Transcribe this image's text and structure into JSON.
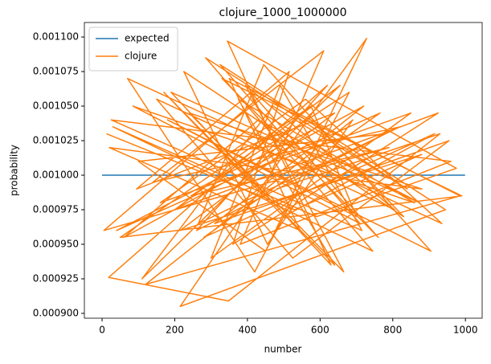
{
  "chart_data": {
    "type": "line",
    "title": "clojure_1000_1000000",
    "xlabel": "number",
    "ylabel": "probability",
    "xlim": [
      -48.7,
      1046
    ],
    "ylim": [
      0.0008965,
      0.0011105
    ],
    "xticks": [
      0,
      200,
      400,
      600,
      800,
      1000
    ],
    "yticks": [
      {
        "value": 0.0009,
        "label": "0.000900"
      },
      {
        "value": 0.000925,
        "label": "0.000925"
      },
      {
        "value": 0.00095,
        "label": "0.000950"
      },
      {
        "value": 0.000975,
        "label": "0.000975"
      },
      {
        "value": 0.001,
        "label": "0.001000"
      },
      {
        "value": 0.001025,
        "label": "0.001025"
      },
      {
        "value": 0.00105,
        "label": "0.001050"
      },
      {
        "value": 0.001075,
        "label": "0.001075"
      },
      {
        "value": 0.0011,
        "label": "0.001100"
      }
    ],
    "grid": false,
    "legend": "upper left",
    "series": [
      {
        "name": "expected",
        "color": "#1f77b4",
        "x": [
          0,
          999
        ],
        "values": [
          0.001,
          0.001
        ]
      },
      {
        "name": "clojure",
        "color": "#ff7f0e",
        "x": [
          12,
          530,
          880,
          215,
          640,
          95,
          410,
          760,
          330,
          990,
          50,
          575,
          700,
          180,
          905,
          445,
          265,
          820,
          140,
          610,
          380,
          960,
          25,
          715,
          490,
          300,
          850,
          160,
          560,
          935,
          70,
          420,
          680,
          245,
          790,
          5,
          515,
          360,
          925,
          200,
          655,
          110,
          470,
          840,
          285,
          745,
          30,
          590,
          975,
          345,
          630,
          190,
          875,
          430,
          60,
          720,
          310,
          955,
          525,
          150,
          805,
          395,
          665,
          240,
          880,
          20,
          545,
          350,
          985,
          120,
          690,
          455,
          225,
          830,
          595,
          40,
          765,
          280,
          915,
          500,
          170,
          640,
          375,
          860,
          85,
          710,
          325,
          945,
          215,
          565,
          728,
          450,
          100,
          780,
          260,
          620,
          18,
          348,
          930,
          480
        ],
        "values": [
          0.00103,
          0.000975,
          0.001015,
          0.00096,
          0.001045,
          0.00099,
          0.00106,
          0.000955,
          0.00107,
          0.000985,
          0.000955,
          0.00105,
          0.00097,
          0.00104,
          0.000945,
          0.00108,
          0.000965,
          0.001035,
          0.000995,
          0.00109,
          0.00095,
          0.00101,
          0.00104,
          0.00096,
          0.001065,
          0.00094,
          0.001045,
          0.00098,
          0.001055,
          0.000965,
          0.00107,
          0.00093,
          0.00106,
          0.000985,
          0.00102,
          0.00096,
          0.001075,
          0.00095,
          0.001045,
          0.000975,
          0.001065,
          0.000925,
          0.00105,
          0.00099,
          0.001085,
          0.000945,
          0.001035,
          0.00097,
          0.001005,
          0.001097,
          0.000935,
          0.00106,
          0.00098,
          0.00104,
          0.000955,
          0.00105,
          0.000965,
          0.001025,
          0.00094,
          0.001055,
          0.000975,
          0.001065,
          0.00093,
          0.001045,
          0.00099,
          0.00102,
          0.00096,
          0.00107,
          0.000985,
          0.000921,
          0.00104,
          0.00095,
          0.001075,
          0.00097,
          0.001035,
          0.00096,
          0.001045,
          0.000955,
          0.00103,
          0.00097,
          0.00106,
          0.000935,
          0.001055,
          0.00098,
          0.00105,
          0.000965,
          0.00108,
          0.000975,
          0.000905,
          0.00104,
          0.001099,
          0.000945,
          0.00101,
          0.00103,
          0.00096,
          0.001065,
          0.000926,
          0.000909,
          0.00103,
          0.00099
        ]
      }
    ]
  }
}
